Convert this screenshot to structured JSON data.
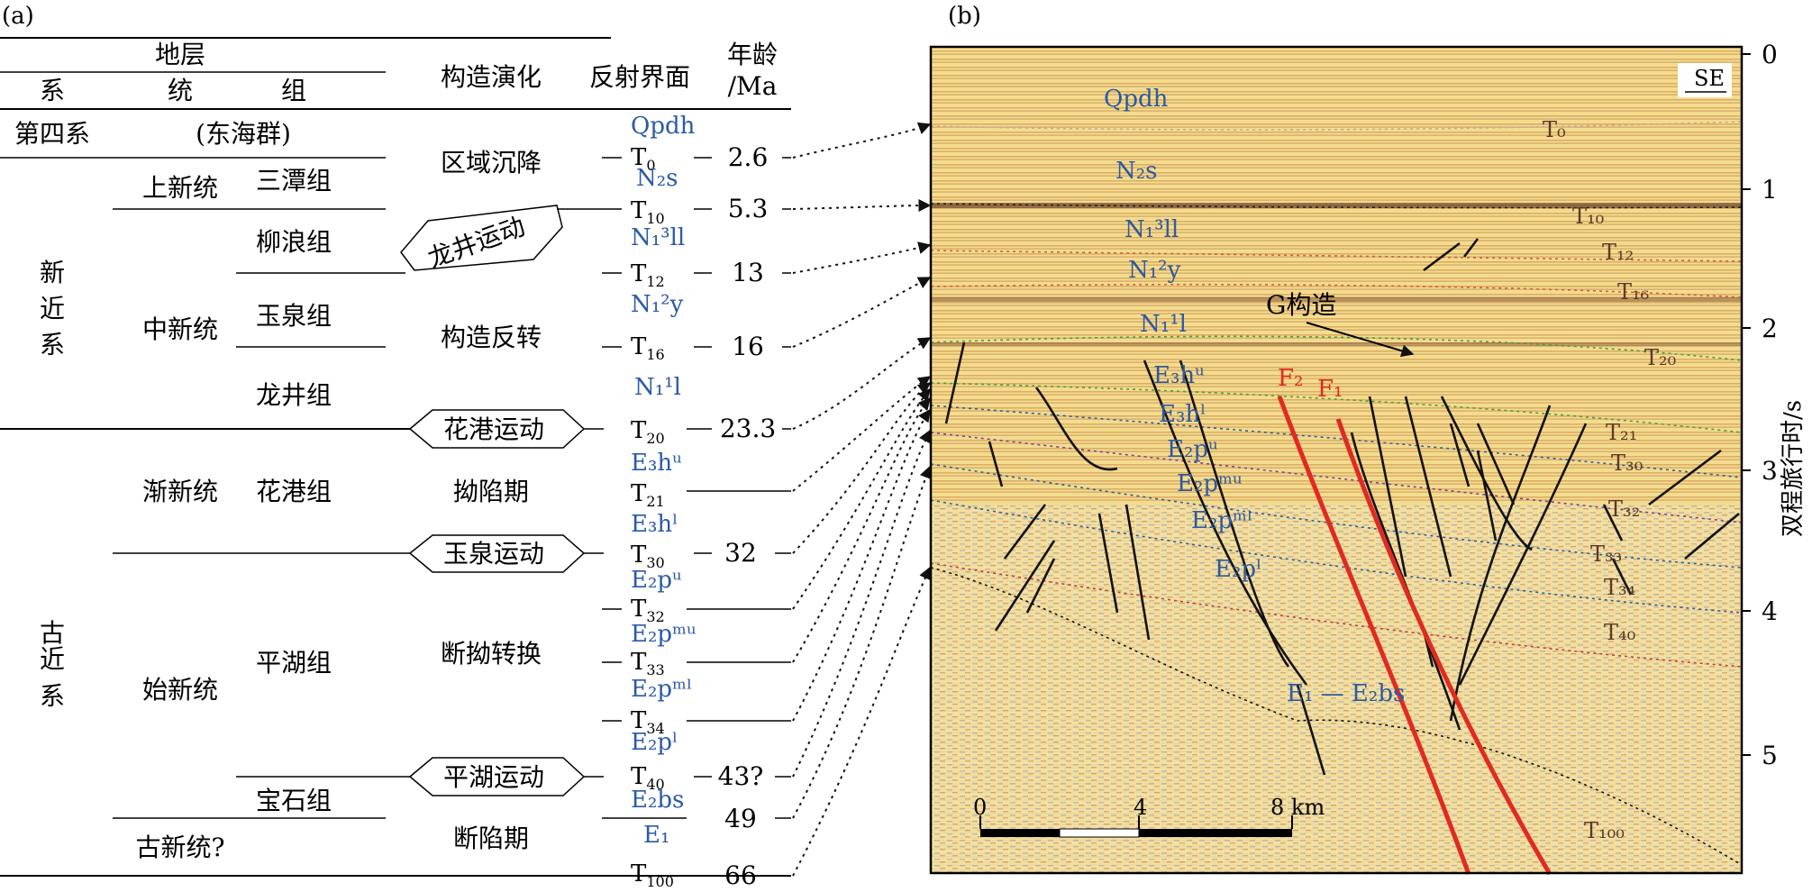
{
  "panel_a": {
    "label": "(a)",
    "headers": {
      "stratum": "地层",
      "system": "系",
      "series": "统",
      "formation": "组",
      "evolution": "构造演化",
      "reflector": "反射界面",
      "age": "年龄",
      "age_unit": "/Ma"
    },
    "systems": {
      "quaternary": "第四系",
      "neogene_1": "新",
      "neogene_2": "近",
      "neogene_3": "系",
      "paleogene_1": "古",
      "paleogene_2": "近",
      "paleogene_3": "系"
    },
    "donghai_group": "(东海群)",
    "series": {
      "pliocene": "上新统",
      "miocene": "中新统",
      "oligocene": "渐新统",
      "eocene": "始新统",
      "paleocene": "古新统?"
    },
    "formations": {
      "santan": "三潭组",
      "liulang": "柳浪组",
      "yuquan": "玉泉组",
      "longjing": "龙井组",
      "huagang": "花港组",
      "pinghu": "平湖组",
      "baoshi": "宝石组"
    },
    "evolution": {
      "regional_subsidence": "区域沉降",
      "longjing_movement": "龙井运动",
      "structural_inversion": "构造反转",
      "huagang_movement": "花港运动",
      "depression": "拗陷期",
      "yuquan_movement": "玉泉运动",
      "fault_depression_transition": "断拗转换",
      "pinghu_movement": "平湖运动",
      "rift": "断陷期"
    },
    "reflectors": {
      "T0": {
        "main": "T",
        "sub": "0"
      },
      "T10": {
        "main": "T",
        "sub": "10"
      },
      "T12": {
        "main": "T",
        "sub": "12"
      },
      "T16": {
        "main": "T",
        "sub": "16"
      },
      "T20": {
        "main": "T",
        "sub": "20"
      },
      "T21": {
        "main": "T",
        "sub": "21"
      },
      "T30": {
        "main": "T",
        "sub": "30"
      },
      "T32": {
        "main": "T",
        "sub": "32"
      },
      "T33": {
        "main": "T",
        "sub": "33"
      },
      "T34": {
        "main": "T",
        "sub": "34"
      },
      "T40": {
        "main": "T",
        "sub": "40"
      },
      "T100": {
        "main": "T",
        "sub": "100"
      }
    },
    "units": {
      "Qpdh": "Qpdh",
      "N2s": "N₂s",
      "N13ll": "N₁³ll",
      "N12y": "N₁²y",
      "N11l": "N₁¹l",
      "E3hu": "E₃hᵘ",
      "E3hl": "E₃hˡ",
      "E2pu": "E₂pᵘ",
      "E2pmu": "E₂pᵐᵘ",
      "E2pml": "E₂pᵐˡ",
      "E2pl": "E₂pˡ",
      "E2bs": "E₂bs",
      "E1": "E₁"
    },
    "ages": {
      "T0": "2.6",
      "T10": "5.3",
      "T12": "13",
      "T16": "16",
      "T20": "23.3",
      "T30": "32",
      "T40": "43?",
      "E2bs": "49",
      "T100": "66"
    }
  },
  "panel_b": {
    "label": "(b)",
    "direction": "SE",
    "axis_title": "双程旅行时/s",
    "axis_ticks": [
      "0",
      "1",
      "2",
      "3",
      "4",
      "5"
    ],
    "structure_label": "G构造",
    "faults": {
      "F2": "F₂",
      "F1": "F₁"
    },
    "units": {
      "Qpdh": "Qpdh",
      "N2s": "N₂s",
      "N13ll": "N₁³ll",
      "N12y": "N₁²y",
      "N11l": "N₁¹l",
      "E3hu": "E₃hᵘ",
      "E3hl": "E₃hˡ",
      "E2pu": "E₂pᵘ",
      "E2pmu": "E₂pᵐᵘ",
      "E2pml": "E₂pᵐˡ",
      "E2pl": "E₂pˡ",
      "E1E2bs": "E₁ — E₂bs"
    },
    "reflectors": {
      "T0": "T₀",
      "T10": "T₁₀",
      "T12": "T₁₂",
      "T16": "T₁₆",
      "T20": "T₂₀",
      "T21": "T₂₁",
      "T30": "T₃₀",
      "T32": "T₃₂",
      "T33": "T₃₃",
      "T34": "T₃₄",
      "T40": "T₄₀",
      "T100": "T₁₀₀"
    },
    "scale": {
      "s0": "0",
      "s4": "4",
      "s8": "8 km"
    },
    "colors": {
      "fault_major": "#e02a22",
      "fault_minor": "#111111",
      "seismic_bg": "#f3d98a"
    }
  }
}
